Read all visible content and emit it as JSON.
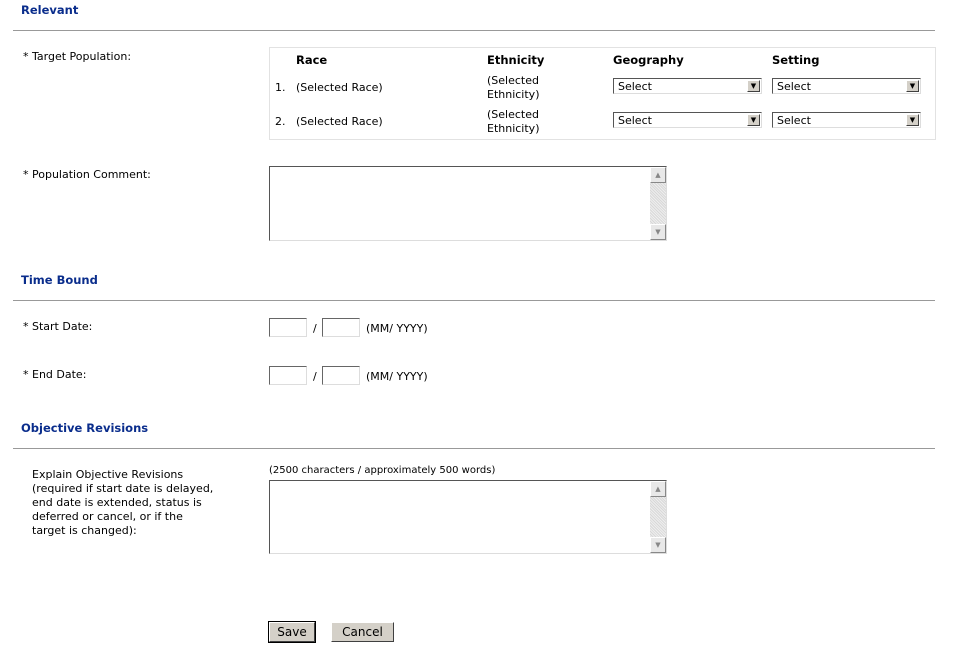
{
  "sections": {
    "relevant": "Relevant",
    "time_bound": "Time Bound",
    "objective_revisions": "Objective Revisions"
  },
  "target_population": {
    "label": "* Target Population:",
    "headers": [
      "Race",
      "Ethnicity",
      "Geography",
      "Setting"
    ],
    "rows": [
      {
        "num": "1.",
        "race": "(Selected Race)",
        "eth1": "(Selected",
        "eth2": "Ethnicity)",
        "geography": "Select",
        "setting": "Select"
      },
      {
        "num": "2.",
        "race": "(Selected Race)",
        "eth1": "(Selected",
        "eth2": "Ethnicity)",
        "geography": "Select",
        "setting": "Select"
      }
    ]
  },
  "population_comment": {
    "label": "* Population Comment:",
    "value": ""
  },
  "start_date": {
    "label": "* Start Date:",
    "sep": "/",
    "format": "(MM/ YYYY)"
  },
  "end_date": {
    "label": "* End Date:",
    "sep": "/",
    "format": "(MM/ YYYY)"
  },
  "explain": {
    "lines": [
      "Explain Objective Revisions",
      "(required if start date is delayed,",
      "end date is extended, status is",
      "deferred or cancel, or if the",
      "target is changed):"
    ],
    "hint": "(2500 characters / approximately 500 words)"
  },
  "buttons": {
    "save": "Save",
    "cancel": "Cancel"
  }
}
